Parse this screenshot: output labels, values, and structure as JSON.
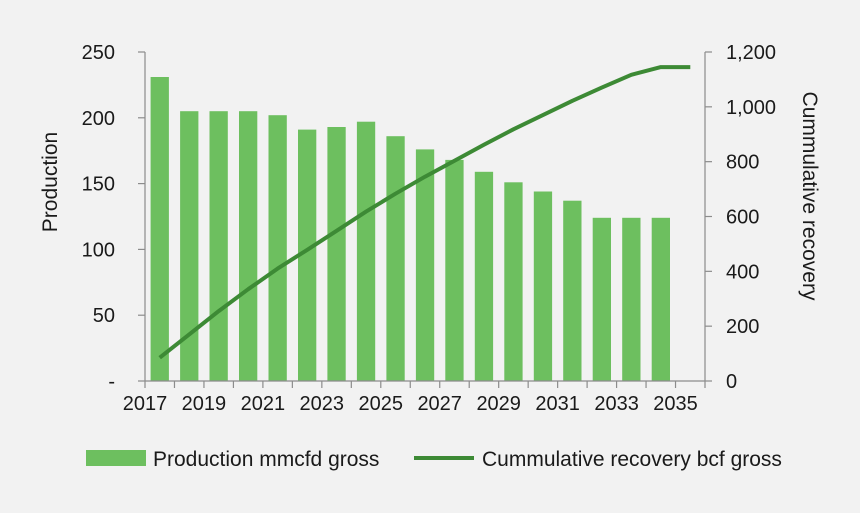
{
  "chart_data": {
    "type": "bar",
    "title": "",
    "x": [
      2017,
      2018,
      2019,
      2020,
      2021,
      2022,
      2023,
      2024,
      2025,
      2026,
      2027,
      2028,
      2029,
      2030,
      2031,
      2032,
      2033,
      2034,
      2035
    ],
    "x_tick_labels": [
      "2017",
      "2019",
      "2021",
      "2023",
      "2025",
      "2027",
      "2029",
      "2031",
      "2033",
      "2035"
    ],
    "ylabel": "Production",
    "y2label": "Cummulative recovery",
    "ylim": [
      0,
      250
    ],
    "y2lim": [
      0,
      1200
    ],
    "y_tick_labels": [
      "-",
      "50",
      "100",
      "150",
      "200",
      "250"
    ],
    "y2_tick_labels": [
      "0",
      "200",
      "400",
      "600",
      "800",
      "1,000",
      "1,200"
    ],
    "grid": false,
    "legend_position": "bottom",
    "series": [
      {
        "name": "Production mmcfd gross",
        "type": "bar",
        "axis": "left",
        "color": "#6dbf5f",
        "x": [
          2017,
          2018,
          2019,
          2020,
          2021,
          2022,
          2023,
          2024,
          2025,
          2026,
          2027,
          2028,
          2029,
          2030,
          2031,
          2032,
          2033,
          2034
        ],
        "values": [
          231,
          205,
          205,
          205,
          202,
          191,
          193,
          197,
          186,
          176,
          168,
          159,
          151,
          144,
          137,
          124,
          124,
          124
        ]
      },
      {
        "name": "Cummulative recovery bcf gross",
        "type": "line",
        "axis": "right",
        "color": "#3d8a35",
        "x": [
          2017,
          2018,
          2019,
          2020,
          2021,
          2022,
          2023,
          2024,
          2025,
          2026,
          2027,
          2028,
          2029,
          2030,
          2031,
          2032,
          2033,
          2034,
          2035
        ],
        "values": [
          85,
          170,
          255,
          335,
          410,
          478,
          548,
          618,
          683,
          745,
          803,
          862,
          918,
          970,
          1022,
          1070,
          1117,
          1145,
          1145
        ]
      }
    ]
  }
}
